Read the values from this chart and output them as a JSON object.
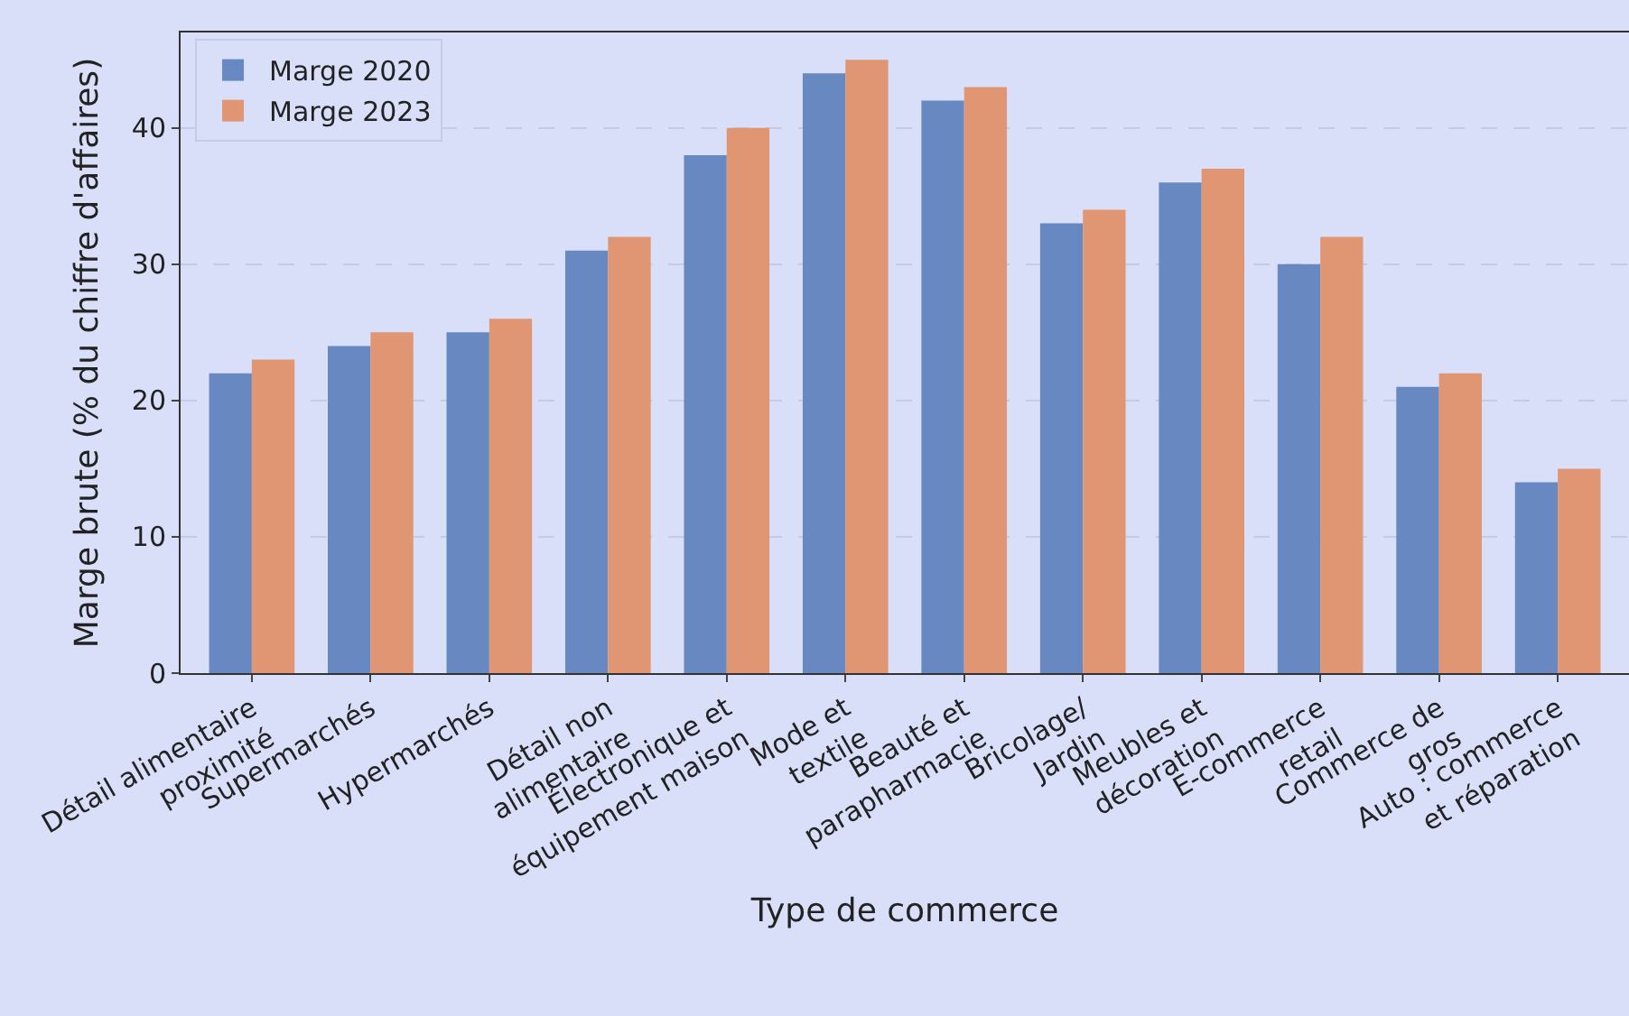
{
  "chart_data": {
    "type": "bar",
    "xlabel": "Type de commerce",
    "ylabel": "Marge brute (% du chiffre d'affaires)",
    "categories": [
      "Détail alimentaire\nproximité",
      "Supermarchés",
      "Hypermarchés",
      "Détail non\nalimentaire",
      "Électronique et\néquipement maison",
      "Mode et\ntextile",
      "Beauté et\nparapharmacie",
      "Bricolage/\nJardin",
      "Meubles et\ndécoration",
      "E-commerce\nretail",
      "Commerce de\ngros",
      "Auto : commerce\net réparation"
    ],
    "series": [
      {
        "name": "Marge 2020",
        "color": "#6788c0",
        "values": [
          22,
          24,
          25,
          31,
          38,
          44,
          42,
          33,
          36,
          30,
          21,
          14
        ]
      },
      {
        "name": "Marge 2023",
        "color": "#e09672",
        "values": [
          23,
          25,
          26,
          32,
          40,
          45,
          43,
          34,
          37,
          32,
          22,
          15
        ]
      }
    ],
    "ylim": [
      0,
      47
    ],
    "yticks": [
      0,
      10,
      20,
      30,
      40
    ],
    "grid": "y",
    "legend": "top left"
  }
}
